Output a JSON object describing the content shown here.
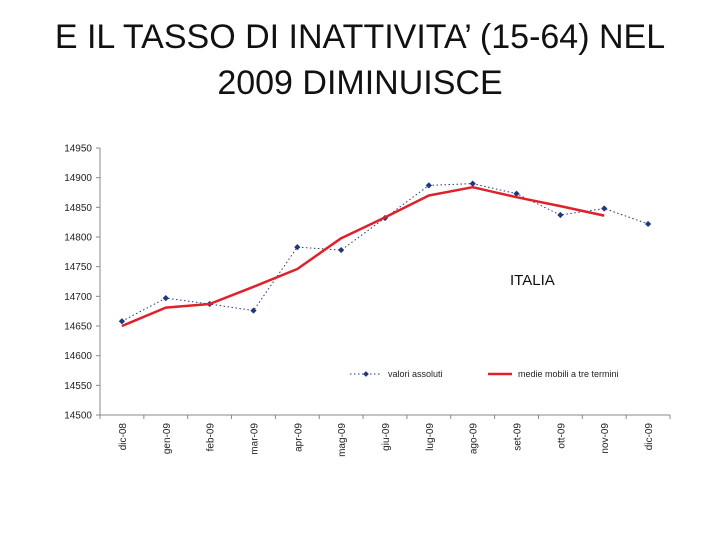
{
  "title": {
    "line1": "E IL TASSO DI INATTIVITA’ (15-64) NEL",
    "line2": "2009  DIMINUISCE"
  },
  "chart_data": {
    "type": "line",
    "categories": [
      "dic-08",
      "gen-09",
      "feb-09",
      "mar-09",
      "apr-09",
      "mag-09",
      "giu-09",
      "lug-09",
      "ago-09",
      "set-09",
      "ott-09",
      "nov-09",
      "dic-09"
    ],
    "ylim": [
      14500,
      14950
    ],
    "yticks": [
      "14500",
      "14550",
      "14600",
      "14650",
      "14700",
      "14750",
      "14800",
      "14850",
      "14900",
      "14950"
    ],
    "grid": false,
    "legend_position": "bottom-right",
    "annotation": "ITALIA",
    "series": [
      {
        "name": "valori assoluti",
        "style": "dotted-markers",
        "color": "#1f3a7a",
        "values": [
          14658,
          14697,
          14687,
          14676,
          14783,
          14778,
          14832,
          14887,
          14890,
          14873,
          14837,
          14848,
          14822
        ]
      },
      {
        "name": "medie mobili a tre termini",
        "style": "solid",
        "color": "#e0202a",
        "values": [
          14650,
          14681,
          14687,
          14716,
          14746,
          14798,
          14833,
          14870,
          14884,
          14867,
          14852,
          14836,
          null
        ]
      }
    ]
  }
}
